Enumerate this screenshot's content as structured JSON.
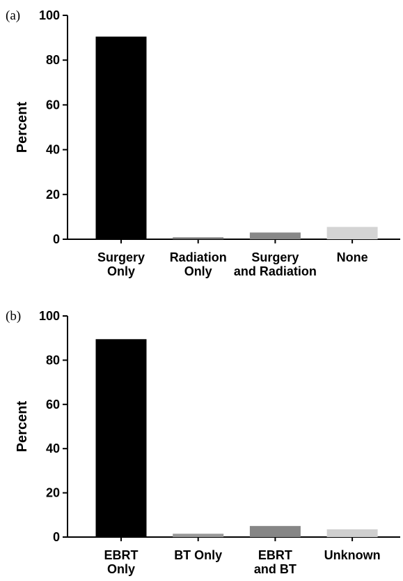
{
  "chart_data": [
    {
      "type": "bar",
      "panel_label": "(a)",
      "ylabel": "Percent",
      "categories": [
        "Surgery\nOnly",
        "Radiation\nOnly",
        "Surgery\nand Radiation",
        "None"
      ],
      "values": [
        90.5,
        0.8,
        3,
        5.5
      ],
      "colors": [
        "#000000",
        "#6e6e6e",
        "#888888",
        "#d4d4d4"
      ],
      "ylim": [
        0,
        100
      ],
      "yticks": [
        0,
        20,
        40,
        60,
        80,
        100
      ]
    },
    {
      "type": "bar",
      "panel_label": "(b)",
      "ylabel": "Percent",
      "categories": [
        "EBRT\nOnly",
        "BT Only",
        "EBRT\nand BT",
        "Unknown"
      ],
      "values": [
        89.5,
        1.5,
        5,
        3.5
      ],
      "colors": [
        "#000000",
        "#9a9a9a",
        "#868686",
        "#cfcfcf"
      ],
      "ylim": [
        0,
        100
      ],
      "yticks": [
        0,
        20,
        40,
        60,
        80,
        100
      ]
    }
  ]
}
